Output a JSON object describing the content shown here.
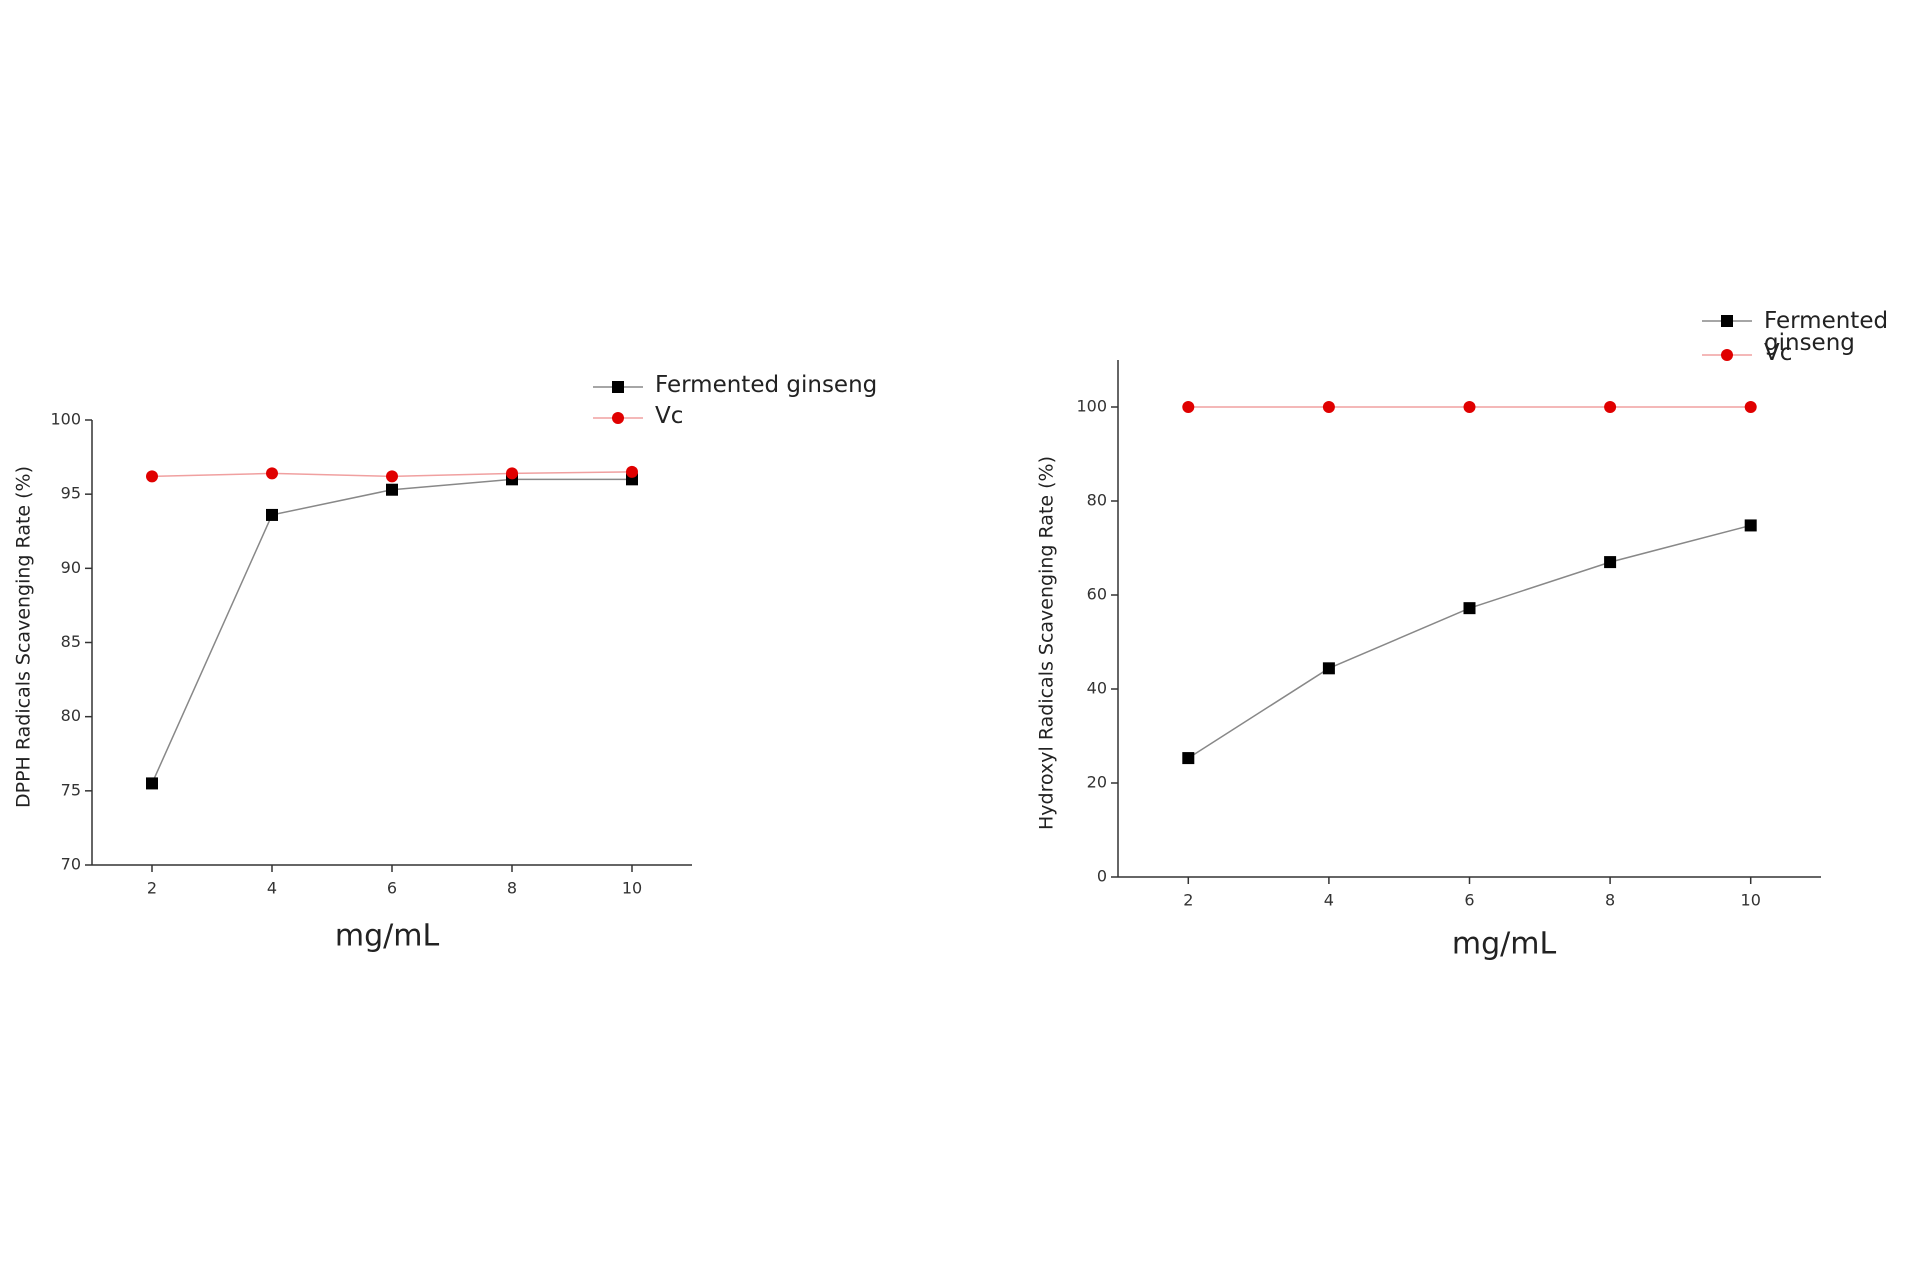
{
  "chart_data": [
    {
      "type": "line",
      "x_label": "mg/mL",
      "y_label": "DPPH Radicals Scavenging Rate (%)",
      "x": [
        2,
        4,
        6,
        8,
        10
      ],
      "xlim": [
        1,
        11
      ],
      "xticks": [
        2,
        4,
        6,
        8,
        10
      ],
      "ylim": [
        70,
        100
      ],
      "yticks": [
        70,
        75,
        80,
        85,
        90,
        95,
        100
      ],
      "series": [
        {
          "name": "Fermented ginseng",
          "color": "#000000",
          "line_color": "#888888",
          "marker": "square",
          "values": [
            75.5,
            93.6,
            95.3,
            96.0,
            96.0
          ]
        },
        {
          "name": "Vc",
          "color": "#e00000",
          "line_color": "#f0a0a0",
          "marker": "circle",
          "values": [
            96.2,
            96.4,
            96.2,
            96.4,
            96.5
          ]
        }
      ]
    },
    {
      "type": "line",
      "x_label": "mg/mL",
      "y_label": "Hydroxyl Radicals Scavenging Rate (%)",
      "x": [
        2,
        4,
        6,
        8,
        10
      ],
      "xlim": [
        1,
        11
      ],
      "xticks": [
        2,
        4,
        6,
        8,
        10
      ],
      "ylim": [
        0,
        110
      ],
      "yticks": [
        0,
        20,
        40,
        60,
        80,
        100
      ],
      "series": [
        {
          "name": "Fermented ginseng",
          "color": "#000000",
          "line_color": "#888888",
          "marker": "square",
          "values": [
            25.3,
            44.4,
            57.2,
            67.0,
            74.8
          ]
        },
        {
          "name": "Vc",
          "color": "#e00000",
          "line_color": "#f0a0a0",
          "marker": "circle",
          "values": [
            100,
            100,
            100,
            100,
            100
          ]
        }
      ]
    }
  ]
}
